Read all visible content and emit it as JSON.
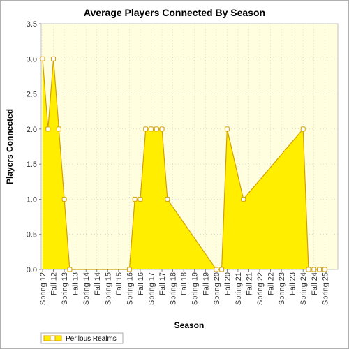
{
  "chart_data": {
    "type": "area",
    "title": "Average Players Connected By Season",
    "xlabel": "Season",
    "ylabel": "Players Connected",
    "ylim": [
      0,
      3.5
    ],
    "yticks": [
      "0.0",
      "0.5",
      "1.0",
      "1.5",
      "2.0",
      "2.5",
      "3.0",
      "3.5"
    ],
    "tick_categories": [
      "Spring 12",
      "Fall 12",
      "Spring 13",
      "Fall 13",
      "Spring 14",
      "Fall 14",
      "Spring 15",
      "Fall 15",
      "Spring 16",
      "Fall 16",
      "Spring 17",
      "Fall 17",
      "Spring 18",
      "Fall 18",
      "Spring 19",
      "Fall 19",
      "Spring 20",
      "Fall 20",
      "Spring 21",
      "Fall 21",
      "Spring 22",
      "Fall 22",
      "Spring 23",
      "Fall 23",
      "Spring 24",
      "Fall 24",
      "Spring 25"
    ],
    "series": [
      {
        "name": "Perilous Realms",
        "color": "#ffee00",
        "points": [
          {
            "pos": 0.0,
            "value": 3
          },
          {
            "pos": 0.5,
            "value": 2
          },
          {
            "pos": 1.0,
            "value": 3
          },
          {
            "pos": 1.5,
            "value": 2
          },
          {
            "pos": 2.0,
            "value": 1
          },
          {
            "pos": 2.5,
            "value": 0
          },
          {
            "pos": 8.0,
            "value": 0
          },
          {
            "pos": 8.5,
            "value": 1
          },
          {
            "pos": 9.0,
            "value": 1
          },
          {
            "pos": 9.5,
            "value": 2
          },
          {
            "pos": 10.0,
            "value": 2
          },
          {
            "pos": 10.5,
            "value": 2
          },
          {
            "pos": 11.0,
            "value": 2
          },
          {
            "pos": 11.5,
            "value": 1
          },
          {
            "pos": 16.0,
            "value": 0
          },
          {
            "pos": 16.5,
            "value": 0
          },
          {
            "pos": 17.0,
            "value": 2
          },
          {
            "pos": 18.5,
            "value": 1
          },
          {
            "pos": 24.0,
            "value": 2
          },
          {
            "pos": 24.5,
            "value": 0
          },
          {
            "pos": 25.0,
            "value": 0
          },
          {
            "pos": 25.5,
            "value": 0
          },
          {
            "pos": 26.0,
            "value": 0
          }
        ]
      }
    ],
    "grid": true,
    "legend_position": "bottom-left"
  }
}
